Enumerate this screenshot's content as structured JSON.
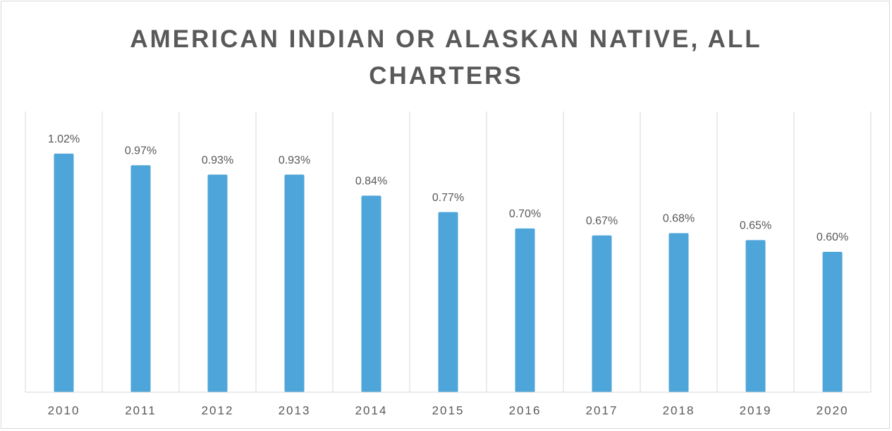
{
  "chart_data": {
    "type": "bar",
    "title": "AMERICAN INDIAN OR ALASKAN NATIVE, ALL CHARTERS",
    "categories": [
      "2010",
      "2011",
      "2012",
      "2013",
      "2014",
      "2015",
      "2016",
      "2017",
      "2018",
      "2019",
      "2020"
    ],
    "values": [
      1.02,
      0.97,
      0.93,
      0.93,
      0.84,
      0.77,
      0.7,
      0.67,
      0.68,
      0.65,
      0.6
    ],
    "value_labels": [
      "1.02%",
      "0.97%",
      "0.93%",
      "0.93%",
      "0.84%",
      "0.77%",
      "0.70%",
      "0.67%",
      "0.68%",
      "0.65%",
      "0.60%"
    ],
    "color": "#4ea5d9",
    "ylim": [
      0,
      1.2
    ]
  }
}
